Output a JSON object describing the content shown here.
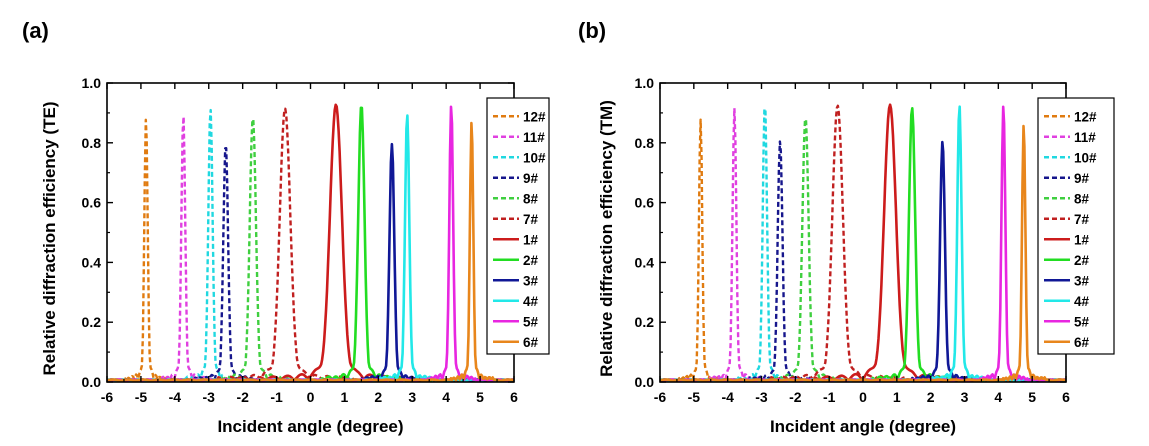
{
  "chart_data": [
    {
      "panel_label": "(a)",
      "type": "line",
      "xlabel": "Incident angle (degree)",
      "ylabel": "Relative diffraction efficiency (TE)",
      "xlim": [
        -6,
        6
      ],
      "ylim": [
        0,
        1.0
      ],
      "x_ticks": [
        "-6",
        "-5",
        "-4",
        "-3",
        "-2",
        "-1",
        "0",
        "1",
        "2",
        "3",
        "4",
        "5",
        "6"
      ],
      "y_ticks": [
        "0.0",
        "0.2",
        "0.4",
        "0.6",
        "0.8",
        "1.0"
      ],
      "grid": false,
      "legend_position": "right",
      "series": [
        {
          "name": "12#",
          "color": "#e07b10",
          "dashed": true,
          "center": -4.85,
          "peak": 0.88,
          "width": 0.07
        },
        {
          "name": "11#",
          "color": "#e040e0",
          "dashed": true,
          "center": -3.75,
          "peak": 0.89,
          "width": 0.08
        },
        {
          "name": "10#",
          "color": "#20d8e0",
          "dashed": true,
          "center": -2.95,
          "peak": 0.91,
          "width": 0.09
        },
        {
          "name": "9#",
          "color": "#16168c",
          "dashed": true,
          "center": -2.5,
          "peak": 0.79,
          "width": 0.1
        },
        {
          "name": "8#",
          "color": "#3fcf3f",
          "dashed": true,
          "center": -1.7,
          "peak": 0.88,
          "width": 0.13
        },
        {
          "name": "7#",
          "color": "#c02020",
          "dashed": true,
          "center": -0.75,
          "peak": 0.91,
          "width": 0.22
        },
        {
          "name": "1#",
          "color": "#cc1c1c",
          "dashed": false,
          "center": 0.75,
          "peak": 0.92,
          "width": 0.25
        },
        {
          "name": "2#",
          "color": "#22dd22",
          "dashed": false,
          "center": 1.5,
          "peak": 0.92,
          "width": 0.13
        },
        {
          "name": "3#",
          "color": "#101896",
          "dashed": false,
          "center": 2.4,
          "peak": 0.79,
          "width": 0.1
        },
        {
          "name": "4#",
          "color": "#22e8e8",
          "dashed": false,
          "center": 2.85,
          "peak": 0.89,
          "width": 0.09
        },
        {
          "name": "5#",
          "color": "#e826e0",
          "dashed": false,
          "center": 4.15,
          "peak": 0.92,
          "width": 0.08
        },
        {
          "name": "6#",
          "color": "#e8861c",
          "dashed": false,
          "center": 4.75,
          "peak": 0.87,
          "width": 0.07
        }
      ]
    },
    {
      "panel_label": "(b)",
      "type": "line",
      "xlabel": "Incident angle (degree)",
      "ylabel": "Relative diffraction efficiency (TM)",
      "xlim": [
        -6,
        6
      ],
      "ylim": [
        0,
        1.0
      ],
      "x_ticks": [
        "-6",
        "-5",
        "-4",
        "-3",
        "-2",
        "-1",
        "0",
        "1",
        "2",
        "3",
        "4",
        "5",
        "6"
      ],
      "y_ticks": [
        "0.0",
        "0.2",
        "0.4",
        "0.6",
        "0.8",
        "1.0"
      ],
      "grid": false,
      "legend_position": "right",
      "series": [
        {
          "name": "12#",
          "color": "#e07b10",
          "dashed": true,
          "center": -4.8,
          "peak": 0.87,
          "width": 0.07
        },
        {
          "name": "11#",
          "color": "#e040e0",
          "dashed": true,
          "center": -3.8,
          "peak": 0.91,
          "width": 0.08
        },
        {
          "name": "10#",
          "color": "#20d8e0",
          "dashed": true,
          "center": -2.9,
          "peak": 0.93,
          "width": 0.09
        },
        {
          "name": "9#",
          "color": "#16168c",
          "dashed": true,
          "center": -2.45,
          "peak": 0.8,
          "width": 0.1
        },
        {
          "name": "8#",
          "color": "#3fcf3f",
          "dashed": true,
          "center": -1.7,
          "peak": 0.88,
          "width": 0.13
        },
        {
          "name": "7#",
          "color": "#c02020",
          "dashed": true,
          "center": -0.75,
          "peak": 0.92,
          "width": 0.22
        },
        {
          "name": "1#",
          "color": "#cc1c1c",
          "dashed": false,
          "center": 0.8,
          "peak": 0.92,
          "width": 0.25
        },
        {
          "name": "2#",
          "color": "#22dd22",
          "dashed": false,
          "center": 1.45,
          "peak": 0.91,
          "width": 0.13
        },
        {
          "name": "3#",
          "color": "#101896",
          "dashed": false,
          "center": 2.35,
          "peak": 0.8,
          "width": 0.1
        },
        {
          "name": "4#",
          "color": "#22e8e8",
          "dashed": false,
          "center": 2.85,
          "peak": 0.92,
          "width": 0.09
        },
        {
          "name": "5#",
          "color": "#e826e0",
          "dashed": false,
          "center": 4.15,
          "peak": 0.92,
          "width": 0.08
        },
        {
          "name": "6#",
          "color": "#e8861c",
          "dashed": false,
          "center": 4.75,
          "peak": 0.86,
          "width": 0.07
        }
      ]
    }
  ]
}
